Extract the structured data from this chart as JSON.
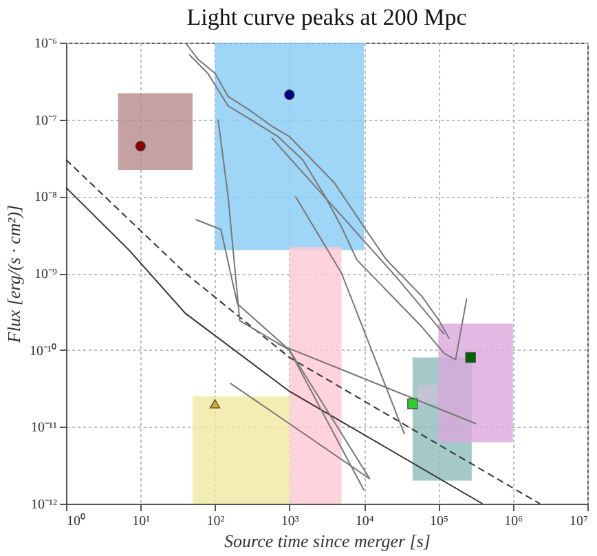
{
  "chart_data": {
    "type": "line",
    "title": "Light curve peaks at 200 Mpc",
    "xlabel": "Source time since merger [s]",
    "ylabel": "Flux [erg/(s · cm²)]",
    "log": "xy",
    "grid": true,
    "xlim": [
      1,
      10000000
    ],
    "ylim": [
      1e-12,
      1e-06
    ],
    "xticks": [
      {
        "value": 1,
        "label": "10⁰"
      },
      {
        "value": 10,
        "label": "10¹"
      },
      {
        "value": 100,
        "label": "10²"
      },
      {
        "value": 1000,
        "label": "10³"
      },
      {
        "value": 10000,
        "label": "10⁴"
      },
      {
        "value": 100000,
        "label": "10⁵"
      },
      {
        "value": 1000000,
        "label": "10⁶"
      },
      {
        "value": 10000000,
        "label": "10⁷"
      }
    ],
    "yticks": [
      {
        "value": 1e-12,
        "label": "10⁻¹²"
      },
      {
        "value": 1e-11,
        "label": "10⁻¹¹"
      },
      {
        "value": 1e-10,
        "label": "10⁻¹⁰"
      },
      {
        "value": 1e-09,
        "label": "10⁻⁹"
      },
      {
        "value": 1e-08,
        "label": "10⁻⁸"
      },
      {
        "value": 1e-07,
        "label": "10⁻⁷"
      },
      {
        "value": 1e-06,
        "label": "10⁻⁶"
      }
    ],
    "series": [
      {
        "type": "area",
        "color": "#b88a8a",
        "x": [
          5,
          50
        ],
        "values": [
          null,
          null
        ],
        "upper": [
          2.2e-07,
          2.2e-07
        ],
        "lower": [
          2.2e-08,
          2.2e-08
        ]
      },
      {
        "type": "area",
        "color": "#87cbf5",
        "x": [
          100,
          10000
        ],
        "values": [
          null,
          null
        ],
        "upper": [
          1e-06,
          1e-06
        ],
        "lower": [
          2e-09,
          2e-09
        ]
      },
      {
        "type": "area",
        "color": "#ffc8d2",
        "x": [
          1000,
          5000
        ],
        "values": [
          null,
          null
        ],
        "upper": [
          2.2e-09,
          2.2e-09
        ],
        "lower": [
          1e-12,
          1e-12
        ]
      },
      {
        "type": "area",
        "color": "#f0e8a0",
        "x": [
          50,
          1000
        ],
        "values": [
          null,
          null
        ],
        "upper": [
          2.5e-11,
          2.5e-11
        ],
        "lower": [
          1e-12,
          1e-12
        ]
      },
      {
        "type": "area",
        "color": "#8fbcbc",
        "x": [
          45000,
          280000
        ],
        "values": [
          null,
          null
        ],
        "upper": [
          8e-11,
          8e-11
        ],
        "lower": [
          2e-12,
          2e-12
        ]
      },
      {
        "type": "area",
        "color": "#cbc3d6",
        "x": [
          52000,
          100000
        ],
        "values": [
          null,
          null
        ],
        "upper": [
          3.5e-11,
          3.5e-11
        ],
        "lower": [
          2e-11,
          2e-11
        ]
      },
      {
        "type": "area",
        "color": "#d9a8dc",
        "x": [
          100000,
          1000000
        ],
        "values": [
          null,
          null
        ],
        "upper": [
          2.2e-10,
          2.2e-10
        ],
        "lower": [
          6.3e-12,
          6.3e-12
        ]
      },
      {
        "color": "#333333",
        "line_style": "solid",
        "x": [
          1,
          7,
          40,
          1000,
          390000
        ],
        "values": [
          1.3e-08,
          2e-09,
          3e-10,
          2.9e-11,
          1e-12
        ]
      },
      {
        "color": "#333333",
        "line_style": "dashed",
        "x": [
          1,
          40,
          1000,
          2300000
        ],
        "values": [
          3e-08,
          1e-09,
          8e-11,
          1e-12
        ]
      },
      {
        "color": "#777777",
        "x": [
          40,
          60,
          100,
          150,
          300,
          600,
          1000,
          2000,
          4000,
          10000,
          20000,
          30000,
          60000,
          100000,
          140000
        ],
        "values": [
          1e-06,
          6e-07,
          4e-07,
          2e-07,
          1.3e-07,
          8e-08,
          6e-08,
          3e-08,
          1.5e-08,
          4e-09,
          1.5e-09,
          1e-09,
          5e-10,
          2.5e-10,
          1.4e-10
        ]
      },
      {
        "color": "#777777",
        "x": [
          45,
          80,
          150,
          300,
          700,
          1500,
          3000,
          5000,
          8000,
          15000,
          30000,
          60000,
          120000,
          170000,
          240000
        ],
        "values": [
          7e-07,
          4e-07,
          1.5e-07,
          1e-07,
          6e-08,
          3e-08,
          1e-08,
          4e-09,
          1.5e-09,
          8e-10,
          4e-10,
          2e-10,
          9e-11,
          7.5e-11,
          4.7e-10
        ]
      },
      {
        "color": "#777777",
        "x": [
          575,
          27000,
          120000
        ],
        "values": [
          5.8e-08,
          9e-10,
          1.6e-10
        ]
      },
      {
        "color": "#777777",
        "x": [
          110,
          150,
          215,
          1000,
          10000
        ],
        "values": [
          1e-07,
          1e-08,
          2.4e-10,
          1e-10,
          1.5e-12
        ]
      },
      {
        "color": "#777777",
        "x": [
          55,
          120,
          200,
          1000,
          12000
        ],
        "values": [
          5e-09,
          3.7e-09,
          4e-10,
          1e-10,
          2.1e-12
        ]
      },
      {
        "color": "#777777",
        "x": [
          160,
          1000,
          12000
        ],
        "values": [
          3.7e-11,
          1.1e-11,
          2.1e-12
        ]
      },
      {
        "color": "#777777",
        "x": [
          700,
          320000
        ],
        "values": [
          1.2e-10,
          1.1e-11
        ]
      },
      {
        "color": "#777777",
        "x": [
          1200,
          5000,
          35000
        ],
        "values": [
          1e-08,
          1e-09,
          8e-12
        ]
      },
      {
        "type": "scatter",
        "color": "#8b0000",
        "marker": "circle",
        "x": [
          10
        ],
        "values": [
          4.5e-08
        ]
      },
      {
        "type": "scatter",
        "color": "#00008b",
        "marker": "circle",
        "x": [
          1000
        ],
        "values": [
          2.1e-07
        ]
      },
      {
        "type": "scatter",
        "color": "#daa520",
        "marker": "triangle",
        "x": [
          100
        ],
        "values": [
          2e-11
        ]
      },
      {
        "type": "scatter",
        "color": "#32cd32",
        "marker": "square",
        "x": [
          45000
        ],
        "values": [
          2e-11
        ]
      },
      {
        "type": "scatter",
        "color": "#006400",
        "marker": "square",
        "x": [
          270000
        ],
        "values": [
          8e-11
        ]
      }
    ]
  }
}
